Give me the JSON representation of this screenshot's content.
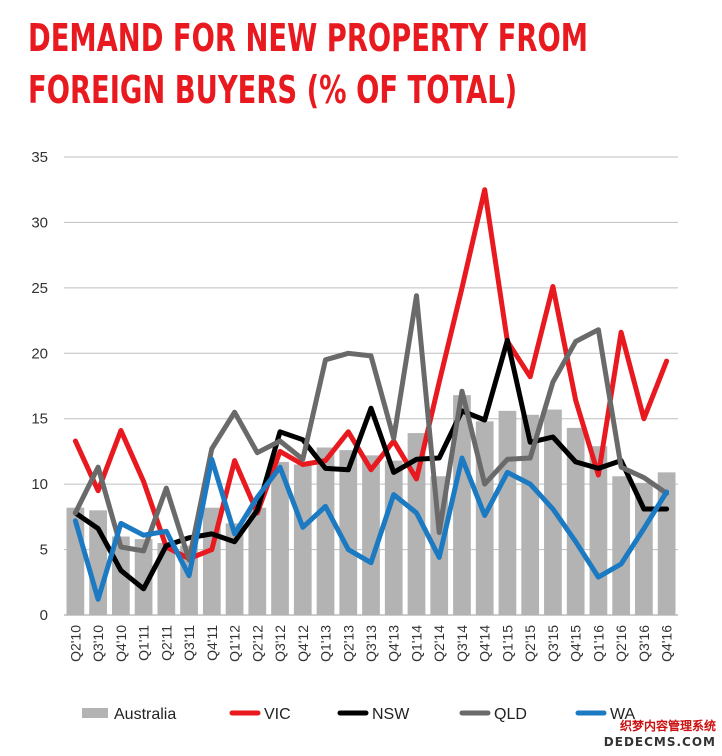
{
  "title_lines": [
    "DEMAND FOR NEW PROPERTY FROM",
    "FOREIGN BUYERS (% OF TOTAL)"
  ],
  "watermark": {
    "chinese": "织梦内容管理系统",
    "url": "DEDECMS.COM"
  },
  "chart_data": {
    "type": "bar+line",
    "title": "DEMAND FOR NEW PROPERTY FROM FOREIGN BUYERS (% OF TOTAL)",
    "xlabel": "",
    "ylabel": "",
    "ylim": [
      0,
      35
    ],
    "yticks": [
      0,
      5,
      10,
      15,
      20,
      25,
      30,
      35
    ],
    "grid": true,
    "legend_position": "bottom",
    "categories": [
      "Q2'10",
      "Q3'10",
      "Q4'10",
      "Q1'11",
      "Q2'11",
      "Q3'11",
      "Q4'11",
      "Q1'12",
      "Q2'12",
      "Q3'12",
      "Q4'12",
      "Q1'13",
      "Q2'13",
      "Q3'13",
      "Q4'13",
      "Q1'14",
      "Q2'14",
      "Q3'14",
      "Q4'14",
      "Q1'15",
      "Q2'15",
      "Q3'15",
      "Q4'15",
      "Q1'16",
      "Q2'16",
      "Q3'16",
      "Q4'16"
    ],
    "bar_series": {
      "name": "Australia",
      "color": "#b3b3b3",
      "values": [
        8.2,
        8.0,
        6.0,
        5.8,
        5.5,
        5.3,
        8.2,
        7.0,
        8.2,
        11.7,
        11.5,
        12.8,
        12.6,
        12.2,
        11.8,
        13.9,
        10.6,
        16.8,
        14.8,
        15.6,
        15.3,
        15.7,
        14.3,
        12.9,
        10.6,
        10.1,
        10.9
      ]
    },
    "series": [
      {
        "name": "VIC",
        "color": "#e8191f",
        "values": [
          13.3,
          9.5,
          14.1,
          10.2,
          5.2,
          4.3,
          5.0,
          11.8,
          7.8,
          12.5,
          11.5,
          11.8,
          14.0,
          11.1,
          13.3,
          10.4,
          17.8,
          25.0,
          32.5,
          20.9,
          18.2,
          25.1,
          16.4,
          10.7,
          21.6,
          15.0,
          19.4
        ]
      },
      {
        "name": "NSW",
        "color": "#000000",
        "values": [
          7.8,
          6.6,
          3.4,
          2.0,
          5.3,
          5.9,
          6.2,
          5.6,
          8.0,
          14.0,
          13.4,
          11.2,
          11.1,
          15.8,
          10.9,
          11.9,
          12.0,
          15.6,
          14.9,
          21.0,
          13.2,
          13.6,
          11.7,
          11.2,
          11.8,
          8.1,
          8.1
        ]
      },
      {
        "name": "QLD",
        "color": "#6a6a6a",
        "values": [
          7.8,
          11.3,
          5.2,
          4.9,
          9.7,
          4.2,
          12.7,
          15.5,
          12.4,
          13.3,
          11.9,
          19.5,
          20.0,
          19.8,
          13.5,
          24.4,
          6.3,
          17.1,
          10.0,
          11.9,
          12.0,
          17.8,
          20.9,
          21.8,
          11.3,
          10.5,
          9.3
        ]
      },
      {
        "name": "WA",
        "color": "#1b7ac2",
        "values": [
          7.2,
          1.2,
          7.0,
          6.1,
          6.4,
          3.0,
          11.9,
          6.2,
          9.0,
          11.3,
          6.7,
          8.3,
          5.0,
          4.0,
          9.2,
          7.8,
          4.4,
          12.0,
          7.6,
          10.9,
          10.0,
          8.1,
          5.6,
          2.9,
          3.9,
          6.6,
          9.4
        ]
      }
    ]
  }
}
